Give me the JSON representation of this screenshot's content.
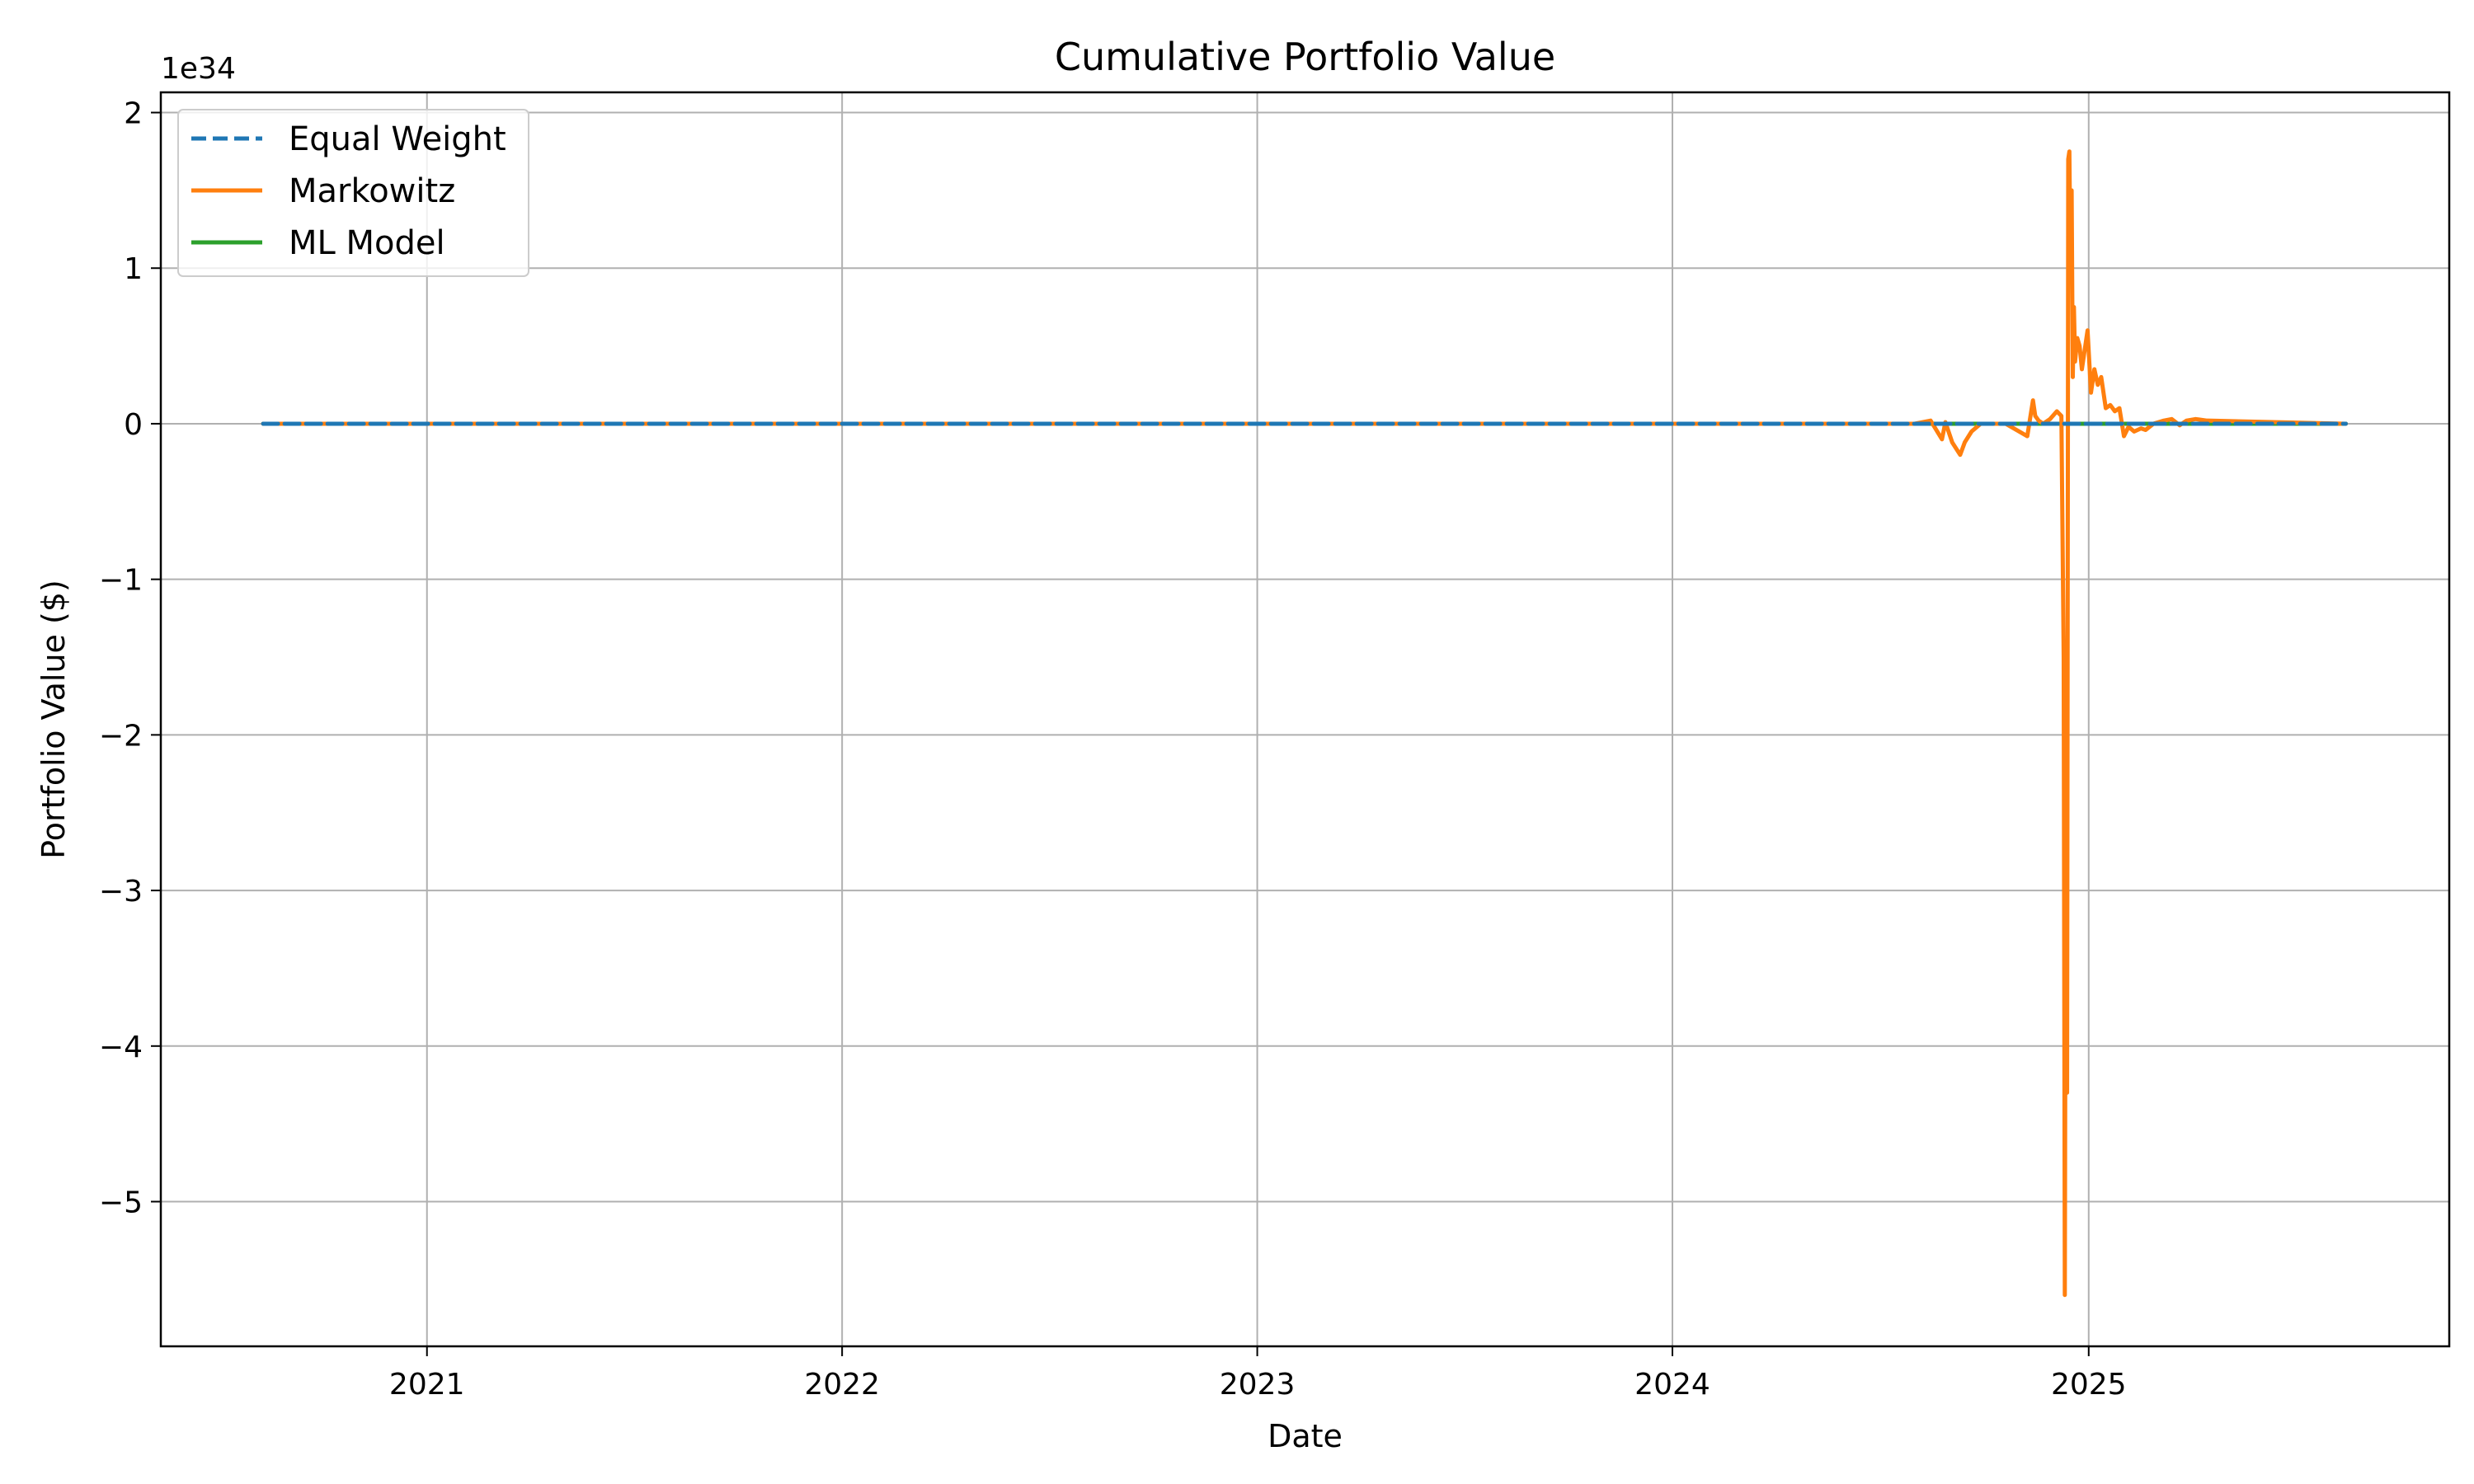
{
  "chart_data": {
    "type": "line",
    "title": "Cumulative Portfolio Value",
    "xlabel": "Date",
    "ylabel": "Portfolio Value ($)",
    "y_offset_label": "1e34",
    "y_multiplier": 1e+34,
    "x_axis_type": "date",
    "xlim": [
      "2020-05-12",
      "2025-11-14"
    ],
    "ylim": [
      -5.93,
      2.13
    ],
    "x_ticks": [
      {
        "value": "2021-01-01",
        "label": "2021"
      },
      {
        "value": "2022-01-01",
        "label": "2022"
      },
      {
        "value": "2023-01-01",
        "label": "2023"
      },
      {
        "value": "2024-01-01",
        "label": "2024"
      },
      {
        "value": "2025-01-01",
        "label": "2025"
      }
    ],
    "y_ticks": [
      {
        "value": 2,
        "label": "2"
      },
      {
        "value": 1,
        "label": "1"
      },
      {
        "value": 0,
        "label": "0"
      },
      {
        "value": -1,
        "label": "−1"
      },
      {
        "value": -2,
        "label": "−2"
      },
      {
        "value": -3,
        "label": "−3"
      },
      {
        "value": -4,
        "label": "−4"
      },
      {
        "value": -5,
        "label": "−5"
      }
    ],
    "grid": true,
    "legend_position": "top-left",
    "series": [
      {
        "name": "Equal Weight",
        "color": "#1f77b4",
        "style": "dashed",
        "x": [
          "2020-08-10",
          "2025-08-15"
        ],
        "y": [
          0,
          0
        ]
      },
      {
        "name": "Markowitz",
        "color": "#ff7f0e",
        "style": "solid",
        "x": [
          "2020-08-10",
          "2024-08-01",
          "2024-08-15",
          "2024-08-25",
          "2024-08-28",
          "2024-09-03",
          "2024-09-10",
          "2024-09-14",
          "2024-09-20",
          "2024-09-28",
          "2024-10-08",
          "2024-10-20",
          "2024-11-08",
          "2024-11-13",
          "2024-11-15",
          "2024-11-18",
          "2024-11-22",
          "2024-11-28",
          "2024-12-04",
          "2024-12-08",
          "2024-12-10",
          "2024-12-11",
          "2024-12-12",
          "2024-12-13",
          "2024-12-14",
          "2024-12-15",
          "2024-12-16",
          "2024-12-17",
          "2024-12-18",
          "2024-12-19",
          "2024-12-20",
          "2024-12-22",
          "2024-12-24",
          "2024-12-26",
          "2024-12-28",
          "2024-12-31",
          "2025-01-03",
          "2025-01-06",
          "2025-01-09",
          "2025-01-12",
          "2025-01-16",
          "2025-01-20",
          "2025-01-24",
          "2025-01-28",
          "2025-02-01",
          "2025-02-05",
          "2025-02-10",
          "2025-02-16",
          "2025-02-20",
          "2025-02-27",
          "2025-03-08",
          "2025-03-15",
          "2025-03-22",
          "2025-03-28",
          "2025-04-05",
          "2025-04-15",
          "2025-08-15"
        ],
        "y": [
          0,
          0,
          0.02,
          -0.1,
          0.01,
          -0.12,
          -0.2,
          -0.12,
          -0.05,
          0,
          0,
          0,
          -0.08,
          0.15,
          0.05,
          0.02,
          0.0,
          0.03,
          0.08,
          0.05,
          -1.5,
          -5.6,
          -2.0,
          -4.3,
          1.7,
          1.75,
          1.0,
          1.5,
          0.3,
          0.75,
          0.4,
          0.55,
          0.5,
          0.35,
          0.45,
          0.6,
          0.2,
          0.35,
          0.25,
          0.3,
          0.1,
          0.12,
          0.08,
          0.1,
          -0.08,
          -0.02,
          -0.05,
          -0.03,
          -0.04,
          0.0,
          0.02,
          0.03,
          -0.01,
          0.02,
          0.03,
          0.02,
          0
        ]
      },
      {
        "name": "ML Model",
        "color": "#2ca02c",
        "style": "solid",
        "x": [
          "2020-08-10",
          "2025-08-15"
        ],
        "y": [
          0,
          0
        ]
      }
    ]
  }
}
